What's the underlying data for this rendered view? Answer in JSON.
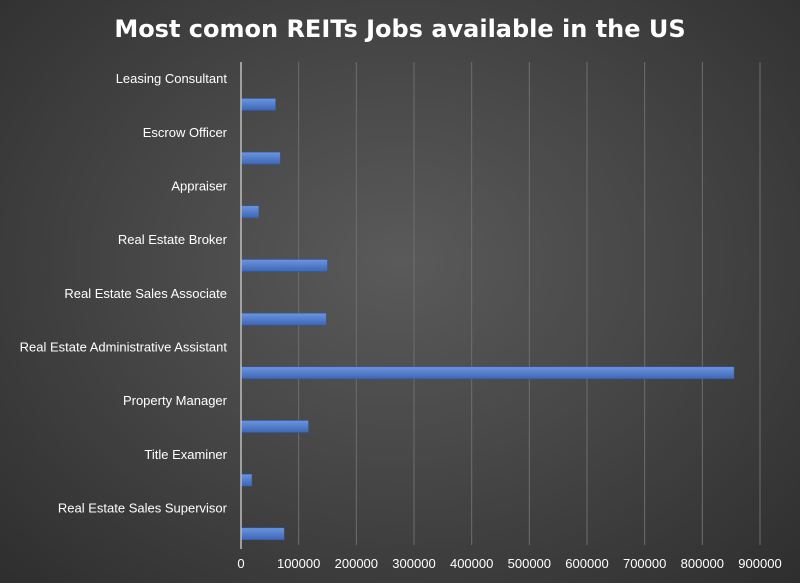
{
  "chart_data": {
    "type": "bar",
    "orientation": "horizontal",
    "title": "Most comon REITs Jobs available in the US",
    "xlabel": "",
    "ylabel": "",
    "categories": [
      "Leasing Consultant",
      "Escrow Officer",
      "Appraiser",
      "Real Estate Broker",
      "Real Estate Sales Associate",
      "Real Estate Administrative Assistant",
      "Property Manager",
      "Title Examiner",
      "Real Estate Sales Supervisor"
    ],
    "values": [
      60000,
      68000,
      31000,
      150000,
      148000,
      855000,
      117000,
      19000,
      75000
    ],
    "xlim": [
      0,
      900000
    ],
    "xticks": [
      "0",
      "100000",
      "200000",
      "300000",
      "400000",
      "500000",
      "600000",
      "700000",
      "800000",
      "900000"
    ],
    "grid": true,
    "legend": "none",
    "colors": {
      "bar": "#4472C4",
      "bar_light": "#5b86d6",
      "grid": "#6e6e6e",
      "axis": "#bdbdbd"
    }
  }
}
